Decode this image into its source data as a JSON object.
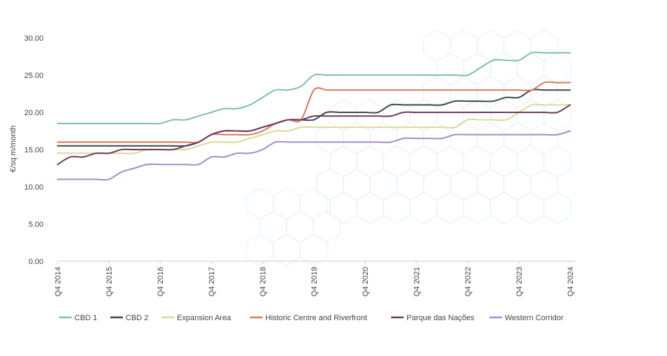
{
  "chart_data": {
    "type": "line",
    "title": "",
    "xlabel": "",
    "ylabel": "€/sq m/month",
    "ylim": [
      0,
      30
    ],
    "yticks": [
      "0.00",
      "5.00",
      "10.00",
      "15.00",
      "20.00",
      "25.00",
      "30.00"
    ],
    "x_tick_labels": [
      "Q4 2014",
      "Q4 2015",
      "Q4 2016",
      "Q4 2017",
      "Q4 2018",
      "Q4 2019",
      "Q4 2020",
      "Q4 2021",
      "Q4 2022",
      "Q4 2023",
      "Q4 2024"
    ],
    "x_period": "quarterly",
    "grid": false,
    "legend_position": "bottom",
    "series": [
      {
        "name": "CBD 1",
        "color": "#7fbfac",
        "values": [
          18.5,
          18.5,
          18.5,
          18.5,
          18.5,
          18.5,
          18.5,
          18.5,
          18.5,
          19.0,
          19.0,
          19.5,
          20.0,
          20.5,
          20.5,
          21.0,
          22.0,
          23.0,
          23.0,
          23.5,
          25.0,
          25.0,
          25.0,
          25.0,
          25.0,
          25.0,
          25.0,
          25.0,
          25.0,
          25.0,
          25.0,
          25.0,
          25.0,
          26.0,
          27.0,
          27.0,
          27.0,
          28.0,
          28.0,
          28.0,
          28.0
        ]
      },
      {
        "name": "CBD 2",
        "color": "#3a4a48",
        "values": [
          15.5,
          15.5,
          15.5,
          15.5,
          15.5,
          15.5,
          15.5,
          15.5,
          15.5,
          15.5,
          15.5,
          16.0,
          17.0,
          17.5,
          17.5,
          17.5,
          18.0,
          18.5,
          19.0,
          19.0,
          19.0,
          20.0,
          20.0,
          20.0,
          20.0,
          20.0,
          21.0,
          21.0,
          21.0,
          21.0,
          21.0,
          21.5,
          21.5,
          21.5,
          21.5,
          22.0,
          22.0,
          23.0,
          23.0,
          23.0,
          23.0
        ]
      },
      {
        "name": "Expansion Area",
        "color": "#d9d99a",
        "values": [
          14.5,
          14.5,
          14.5,
          14.5,
          14.5,
          14.5,
          14.5,
          15.0,
          15.0,
          15.0,
          15.0,
          15.5,
          16.0,
          16.0,
          16.0,
          16.5,
          17.0,
          17.5,
          17.5,
          18.0,
          18.0,
          18.0,
          18.0,
          18.0,
          18.0,
          18.0,
          18.0,
          18.0,
          18.0,
          18.0,
          18.0,
          18.0,
          19.0,
          19.0,
          19.0,
          19.0,
          20.0,
          21.0,
          21.0,
          21.0,
          21.0
        ]
      },
      {
        "name": "Historic Centre and Riverfront",
        "color": "#d9785b",
        "values": [
          16.0,
          16.0,
          16.0,
          16.0,
          16.0,
          16.0,
          16.0,
          16.0,
          16.0,
          16.0,
          16.0,
          16.0,
          17.0,
          17.0,
          17.0,
          17.0,
          17.5,
          18.5,
          19.0,
          19.0,
          23.0,
          23.0,
          23.0,
          23.0,
          23.0,
          23.0,
          23.0,
          23.0,
          23.0,
          23.0,
          23.0,
          23.0,
          23.0,
          23.0,
          23.0,
          23.0,
          23.0,
          23.0,
          24.0,
          24.0,
          24.0
        ]
      },
      {
        "name": "Parque das Nações",
        "color": "#6b3b5e",
        "values": [
          13.0,
          14.0,
          14.0,
          14.5,
          14.5,
          15.0,
          15.0,
          15.0,
          15.0,
          15.0,
          15.5,
          16.0,
          17.0,
          17.5,
          17.5,
          17.5,
          18.0,
          18.5,
          19.0,
          19.0,
          19.5,
          19.5,
          19.5,
          19.5,
          19.5,
          19.5,
          19.5,
          20.0,
          20.0,
          20.0,
          20.0,
          20.0,
          20.0,
          20.0,
          20.0,
          20.0,
          20.0,
          20.0,
          20.0,
          20.0,
          21.0
        ]
      },
      {
        "name": "Western Corridor",
        "color": "#a58cc6",
        "values": [
          11.0,
          11.0,
          11.0,
          11.0,
          11.0,
          12.0,
          12.5,
          13.0,
          13.0,
          13.0,
          13.0,
          13.0,
          14.0,
          14.0,
          14.5,
          14.5,
          15.0,
          16.0,
          16.0,
          16.0,
          16.0,
          16.0,
          16.0,
          16.0,
          16.0,
          16.0,
          16.0,
          16.5,
          16.5,
          16.5,
          16.5,
          17.0,
          17.0,
          17.0,
          17.0,
          17.0,
          17.0,
          17.0,
          17.0,
          17.0,
          17.5
        ]
      }
    ]
  }
}
